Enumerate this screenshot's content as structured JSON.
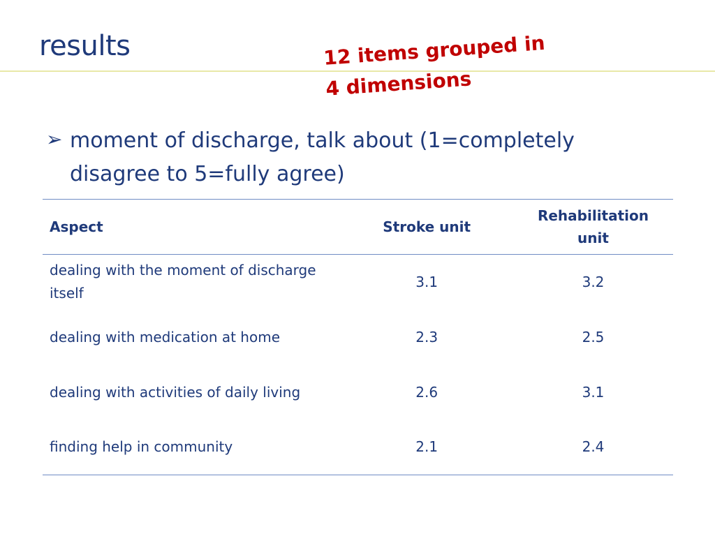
{
  "slide": {
    "title": "results",
    "callout": "12 items grouped in\n4 dimensions",
    "bullet": {
      "icon": "arrow-bullet-icon",
      "glyph": "➢",
      "text": "moment of discharge, talk about (1=completely disagree to 5=fully agree)"
    }
  },
  "table": {
    "headers": {
      "aspect": "Aspect",
      "stroke": "Stroke unit",
      "rehab": "Rehabilitation unit"
    },
    "rows": [
      {
        "aspect": "dealing with the moment of discharge itself",
        "stroke": "3.1",
        "rehab": "3.2"
      },
      {
        "aspect": "dealing with medication at home",
        "stroke": "2.3",
        "rehab": "2.5"
      },
      {
        "aspect": "dealing with activities of daily living",
        "stroke": "2.6",
        "rehab": "3.1"
      },
      {
        "aspect": "finding help in community",
        "stroke": "2.1",
        "rehab": "2.4"
      }
    ]
  },
  "colors": {
    "title": "#1f3a7a",
    "callout": "#c00000",
    "rule": "#e8e8a8",
    "table_border": "#6f8cc4"
  }
}
